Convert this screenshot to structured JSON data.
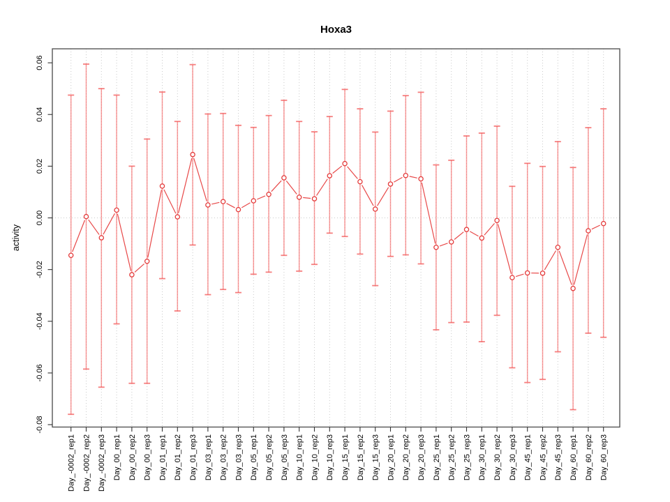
{
  "window": {
    "background": "#ffffff"
  },
  "colors": {
    "error_bar": "#f45c5c",
    "error_bar_opacity": 0.62,
    "cap_opacity": 0.78,
    "point_stroke": "#e43b3b",
    "point_fill": "#ffffff",
    "line": "#e84848",
    "grid": "#c9c9c9",
    "axis_box": "#555555",
    "tick": "#333333",
    "text": "#000000"
  },
  "chart_data": {
    "type": "line",
    "title": "Hoxa3",
    "xlabel": "",
    "ylabel": "activity",
    "ylim": [
      -0.081,
      0.066
    ],
    "legend": "none",
    "grid": "dotted vertical gridline at every category; dotted horizontal line at y=0",
    "point_style": "open circles with vertical error bars (mean with lower/upper bounds), R type='b' gaps between markers and connecting segments",
    "y_ticks": [
      {
        "value": 0.06,
        "label": "0.06"
      },
      {
        "value": 0.04,
        "label": "0.04"
      },
      {
        "value": 0.02,
        "label": "0.02"
      },
      {
        "value": 0.0,
        "label": "0.00"
      },
      {
        "value": -0.02,
        "label": "-0.02"
      },
      {
        "value": -0.04,
        "label": "-0.04"
      },
      {
        "value": -0.06,
        "label": "-0.06"
      },
      {
        "value": -0.08,
        "label": "-0.08"
      }
    ],
    "categories": [
      "Day_-0002_rep1",
      "Day_-0002_rep2",
      "Day_-0002_rep3",
      "Day_00_rep1",
      "Day_00_rep2",
      "Day_00_rep3",
      "Day_01_rep1",
      "Day_01_rep2",
      "Day_01_rep3",
      "Day_03_rep1",
      "Day_03_rep2",
      "Day_03_rep3",
      "Day_05_rep1",
      "Day_05_rep2",
      "Day_05_rep3",
      "Day_10_rep1",
      "Day_10_rep2",
      "Day_10_rep3",
      "Day_15_rep1",
      "Day_15_rep2",
      "Day_15_rep3",
      "Day_20_rep1",
      "Day_20_rep2",
      "Day_20_rep3",
      "Day_25_rep1",
      "Day_25_rep2",
      "Day_25_rep3",
      "Day_30_rep1",
      "Day_30_rep2",
      "Day_30_rep3",
      "Day_45_rep1",
      "Day_45_rep2",
      "Day_45_rep3",
      "Day_60_rep1",
      "Day_60_rep2",
      "Day_60_rep3"
    ],
    "series": [
      {
        "name": "mean",
        "values": [
          -0.0145,
          0.0005,
          -0.0077,
          0.003,
          -0.022,
          -0.0168,
          0.0123,
          0.0004,
          0.0245,
          0.005,
          0.0063,
          0.0032,
          0.0066,
          0.0091,
          0.0155,
          0.008,
          0.0074,
          0.0163,
          0.021,
          0.014,
          0.0034,
          0.0131,
          0.0164,
          0.0151,
          -0.0114,
          -0.0093,
          -0.0045,
          -0.0078,
          -0.001,
          -0.0231,
          -0.0213,
          -0.0214,
          -0.0114,
          -0.0273,
          -0.005,
          -0.0022
        ]
      },
      {
        "name": "lower",
        "values": [
          -0.076,
          -0.0585,
          -0.0655,
          -0.041,
          -0.064,
          -0.064,
          -0.0235,
          -0.036,
          -0.0105,
          -0.0297,
          -0.0277,
          -0.0289,
          -0.0218,
          -0.021,
          -0.0145,
          -0.0206,
          -0.018,
          -0.0059,
          -0.0072,
          -0.014,
          -0.0262,
          -0.0149,
          -0.0143,
          -0.0178,
          -0.0433,
          -0.0405,
          -0.0403,
          -0.0479,
          -0.0377,
          -0.058,
          -0.0637,
          -0.0625,
          -0.0518,
          -0.0742,
          -0.0446,
          -0.0462
        ]
      },
      {
        "name": "upper",
        "values": [
          0.0475,
          0.0595,
          0.05,
          0.0475,
          0.02,
          0.0305,
          0.0487,
          0.0373,
          0.0593,
          0.0402,
          0.0404,
          0.0358,
          0.035,
          0.0396,
          0.0455,
          0.0373,
          0.0333,
          0.0392,
          0.0497,
          0.0422,
          0.0332,
          0.0413,
          0.0473,
          0.0486,
          0.0205,
          0.0223,
          0.0317,
          0.0328,
          0.0355,
          0.0122,
          0.0211,
          0.0199,
          0.0295,
          0.0195,
          0.0349,
          0.0422
        ]
      }
    ]
  }
}
